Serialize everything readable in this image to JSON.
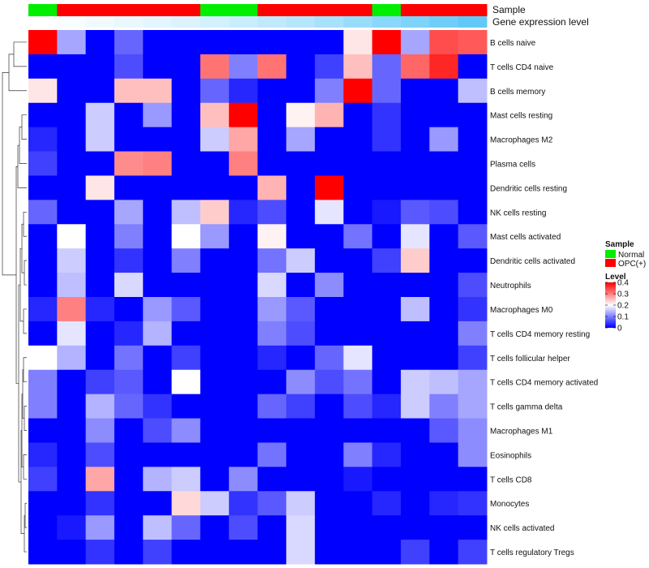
{
  "chart_data": {
    "type": "heatmap",
    "title": "",
    "annotation_tracks": [
      {
        "name": "Sample",
        "label": "Sample"
      },
      {
        "name": "Gene expression level",
        "label": "Gene expression level"
      }
    ],
    "sample_groups": [
      "N",
      "O",
      "O",
      "O",
      "O",
      "O",
      "N",
      "N",
      "O",
      "O",
      "O",
      "O",
      "N",
      "O",
      "O",
      "O"
    ],
    "expression_levels": [
      0.0,
      0.04,
      0.08,
      0.12,
      0.16,
      0.2,
      0.25,
      0.3,
      0.36,
      0.42,
      0.5,
      0.58,
      0.66,
      0.74,
      0.82,
      0.9
    ],
    "rows": [
      "B cells naive",
      "T cells CD4 naive",
      "B cells memory",
      "Mast cells resting",
      "Macrophages M2",
      "Plasma cells",
      "Dendritic cells resting",
      "NK cells resting",
      "Mast cells activated",
      "Dendritic cells activated",
      "Neutrophils",
      "Macrophages M0",
      "T cells CD4 memory resting",
      "T cells follicular helper",
      "T cells CD4 memory activated",
      "T cells gamma delta",
      "Macrophages M1",
      "Eosinophils",
      "T cells CD8",
      "Monocytes",
      "NK cells activated",
      "T cells regulatory  Tregs"
    ],
    "values": [
      [
        0.4,
        0.13,
        0,
        0.08,
        0,
        0,
        0,
        0,
        0,
        0,
        0,
        0.22,
        0.4,
        0.13,
        0.34,
        0.33
      ],
      [
        0,
        0,
        0,
        0.06,
        0,
        0,
        0.31,
        0.1,
        0.31,
        0,
        0.05,
        0.25,
        0.08,
        0.32,
        0.37,
        0
      ],
      [
        0.22,
        0,
        0,
        0.25,
        0.25,
        0,
        0.08,
        0.03,
        0,
        0,
        0.1,
        0.4,
        0.08,
        0,
        0,
        0.15
      ],
      [
        0,
        0,
        0.16,
        0,
        0.12,
        0,
        0.25,
        0.4,
        0,
        0.21,
        0.26,
        0,
        0.04,
        0,
        0,
        0
      ],
      [
        0.03,
        0,
        0.16,
        0,
        0,
        0,
        0.16,
        0.27,
        0,
        0.13,
        0,
        0,
        0.04,
        0,
        0.12,
        0
      ],
      [
        0.05,
        0,
        0,
        0.29,
        0.3,
        0,
        0,
        0.3,
        0,
        0,
        0,
        0,
        0,
        0,
        0,
        0
      ],
      [
        0,
        0,
        0.22,
        0,
        0,
        0,
        0,
        0,
        0.26,
        0,
        0.4,
        0,
        0,
        0,
        0,
        0
      ],
      [
        0.08,
        0,
        0,
        0.13,
        0,
        0.15,
        0.24,
        0.03,
        0.06,
        0,
        0.18,
        0,
        0.02,
        0.07,
        0.06,
        0
      ],
      [
        0,
        0.2,
        0,
        0.1,
        0,
        0.2,
        0.12,
        0,
        0.21,
        0,
        0,
        0.09,
        0,
        0.18,
        0,
        0.07
      ],
      [
        0,
        0.16,
        0,
        0.04,
        0,
        0.1,
        0,
        0,
        0.09,
        0.16,
        0,
        0,
        0.05,
        0.24,
        0,
        0
      ],
      [
        0,
        0.15,
        0,
        0.17,
        0,
        0,
        0,
        0,
        0.17,
        0,
        0.11,
        0,
        0,
        0,
        0,
        0.06
      ],
      [
        0.03,
        0.3,
        0.03,
        0,
        0.12,
        0.07,
        0,
        0,
        0.12,
        0.07,
        0,
        0,
        0,
        0.15,
        0,
        0.04
      ],
      [
        0,
        0.18,
        0,
        0.03,
        0.14,
        0,
        0,
        0,
        0.1,
        0.06,
        0,
        0,
        0,
        0,
        0,
        0.1
      ],
      [
        0.2,
        0.14,
        0,
        0.09,
        0,
        0.05,
        0,
        0,
        0.03,
        0,
        0.08,
        0.18,
        0,
        0,
        0,
        0.05
      ],
      [
        0.1,
        0,
        0.05,
        0.07,
        0,
        0.2,
        0,
        0,
        0,
        0.11,
        0.06,
        0.09,
        0,
        0.16,
        0.15,
        0.13
      ],
      [
        0.1,
        0,
        0.14,
        0.08,
        0.04,
        0,
        0,
        0,
        0.08,
        0.05,
        0,
        0.06,
        0.03,
        0.16,
        0.1,
        0.13
      ],
      [
        0,
        0,
        0.11,
        0,
        0.06,
        0.11,
        0,
        0,
        0,
        0,
        0,
        0,
        0,
        0,
        0.07,
        0.11
      ],
      [
        0.03,
        0,
        0.06,
        0,
        0,
        0,
        0,
        0,
        0.09,
        0,
        0,
        0.1,
        0.03,
        0,
        0,
        0.11
      ],
      [
        0.05,
        0,
        0.27,
        0,
        0.14,
        0.16,
        0,
        0.11,
        0,
        0,
        0,
        0.02,
        0,
        0,
        0,
        0
      ],
      [
        0,
        0,
        0.04,
        0,
        0,
        0.23,
        0.16,
        0.04,
        0.07,
        0.16,
        0,
        0,
        0.03,
        0,
        0.03,
        0.04
      ],
      [
        0,
        0.02,
        0.12,
        0,
        0.15,
        0.08,
        0,
        0.06,
        0,
        0.17,
        0,
        0,
        0,
        0,
        0,
        0
      ],
      [
        0,
        0,
        0.04,
        0,
        0.05,
        0,
        0,
        0,
        0,
        0.17,
        0,
        0,
        0,
        0.05,
        0,
        0.05
      ]
    ],
    "legend": {
      "sample_title": "Sample",
      "sample_entries": [
        {
          "key": "N",
          "label": "Normal",
          "color": "#00ee00"
        },
        {
          "key": "O",
          "label": "OPC(+)",
          "color": "#ff0000"
        }
      ],
      "level_title": "Level",
      "level_ticks": [
        "0.4",
        "0.3",
        "0.2",
        "0.1",
        "0"
      ],
      "level_tick_values": [
        0.4,
        0.3,
        0.2,
        0.1,
        0
      ],
      "range": [
        0,
        0.4
      ]
    },
    "colors": {
      "low": "#0000ff",
      "mid": "#ffffff",
      "high": "#ff0000",
      "expr_low": "#ffffff",
      "expr_high": "#4fc3f7"
    }
  }
}
